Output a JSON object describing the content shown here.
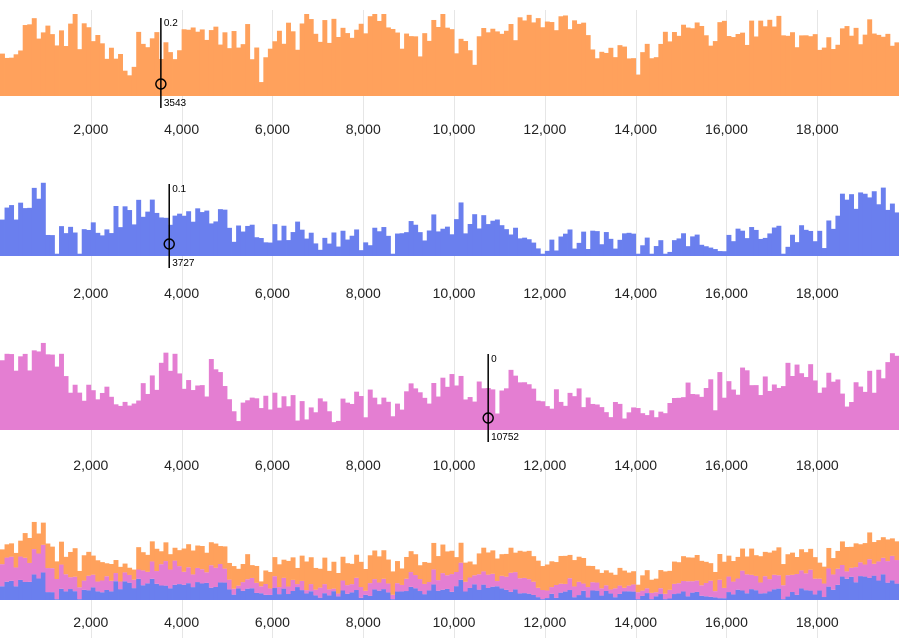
{
  "chart_data": [
    {
      "type": "bar",
      "title": "",
      "series_name": "orange",
      "color": "#FFA15C",
      "x_domain": [
        0,
        19800
      ],
      "bin_width": 100,
      "xticks": [
        "2,000",
        "4,000",
        "6,000",
        "8,000",
        "10,000",
        "12,000",
        "14,000",
        "16,000",
        "18,000"
      ],
      "cursor": {
        "x": 3543,
        "value_label": "0.2",
        "x_label": "3543"
      },
      "segments": [
        [
          0,
          0.6
        ],
        [
          500,
          0.82
        ],
        [
          1000,
          0.72
        ],
        [
          1500,
          0.86
        ],
        [
          2000,
          0.74
        ],
        [
          2500,
          0.36
        ],
        [
          3000,
          0.65
        ],
        [
          3500,
          0.58
        ],
        [
          4000,
          0.84
        ],
        [
          4500,
          0.76
        ],
        [
          5000,
          0.72
        ],
        [
          5500,
          0.56
        ],
        [
          6000,
          0.74
        ],
        [
          6500,
          0.88
        ],
        [
          7000,
          0.8
        ],
        [
          7500,
          0.78
        ],
        [
          8000,
          0.9
        ],
        [
          8500,
          0.68
        ],
        [
          9000,
          0.63
        ],
        [
          9500,
          0.88
        ],
        [
          10000,
          0.62
        ],
        [
          10500,
          0.86
        ],
        [
          11000,
          0.82
        ],
        [
          11500,
          0.8
        ],
        [
          12000,
          0.88
        ],
        [
          12500,
          0.78
        ],
        [
          13000,
          0.62
        ],
        [
          13500,
          0.58
        ],
        [
          14000,
          0.55
        ],
        [
          14500,
          0.7
        ],
        [
          15000,
          0.8
        ],
        [
          15500,
          0.76
        ],
        [
          16000,
          0.73
        ],
        [
          16500,
          0.8
        ],
        [
          17000,
          0.82
        ],
        [
          17500,
          0.72
        ],
        [
          18000,
          0.56
        ],
        [
          18500,
          0.73
        ],
        [
          19000,
          0.84
        ],
        [
          19500,
          0.66
        ]
      ]
    },
    {
      "type": "bar",
      "title": "",
      "series_name": "blue",
      "color": "#6A7FEE",
      "x_domain": [
        0,
        19800
      ],
      "bin_width": 100,
      "xticks": [
        "2,000",
        "4,000",
        "6,000",
        "8,000",
        "10,000",
        "12,000",
        "14,000",
        "16,000",
        "18,000"
      ],
      "cursor": {
        "x": 3727,
        "value_label": "0.1",
        "x_label": "3727"
      },
      "segments": [
        [
          0,
          0.56
        ],
        [
          500,
          0.78
        ],
        [
          1000,
          0.27
        ],
        [
          1500,
          0.24
        ],
        [
          2000,
          0.32
        ],
        [
          2500,
          0.52
        ],
        [
          3000,
          0.62
        ],
        [
          3500,
          0.5
        ],
        [
          4000,
          0.52
        ],
        [
          4500,
          0.56
        ],
        [
          5000,
          0.34
        ],
        [
          5500,
          0.28
        ],
        [
          6000,
          0.36
        ],
        [
          6500,
          0.3
        ],
        [
          7000,
          0.18
        ],
        [
          7500,
          0.22
        ],
        [
          8000,
          0.24
        ],
        [
          8500,
          0.27
        ],
        [
          9000,
          0.36
        ],
        [
          9500,
          0.44
        ],
        [
          10000,
          0.58
        ],
        [
          10500,
          0.46
        ],
        [
          11000,
          0.32
        ],
        [
          11500,
          0.2
        ],
        [
          12000,
          0.16
        ],
        [
          12500,
          0.2
        ],
        [
          13000,
          0.2
        ],
        [
          13500,
          0.16
        ],
        [
          14000,
          0.1
        ],
        [
          14500,
          0.13
        ],
        [
          15000,
          0.16
        ],
        [
          15500,
          0.2
        ],
        [
          16000,
          0.2
        ],
        [
          16500,
          0.28
        ],
        [
          17000,
          0.27
        ],
        [
          17500,
          0.32
        ],
        [
          18000,
          0.4
        ],
        [
          18500,
          0.72
        ],
        [
          19000,
          0.84
        ],
        [
          19500,
          0.64
        ]
      ]
    },
    {
      "type": "bar",
      "title": "",
      "series_name": "pink",
      "color": "#E47ED2",
      "x_domain": [
        0,
        19800
      ],
      "bin_width": 100,
      "xticks": [
        "2,000",
        "4,000",
        "6,000",
        "8,000",
        "10,000",
        "12,000",
        "14,000",
        "16,000",
        "18,000"
      ],
      "cursor": {
        "x": 10752,
        "value_label": "0",
        "x_label": "10752"
      },
      "segments": [
        [
          0,
          0.78
        ],
        [
          500,
          0.82
        ],
        [
          1000,
          0.72
        ],
        [
          1500,
          0.48
        ],
        [
          2000,
          0.36
        ],
        [
          2500,
          0.36
        ],
        [
          3000,
          0.48
        ],
        [
          3500,
          0.74
        ],
        [
          4000,
          0.6
        ],
        [
          4500,
          0.52
        ],
        [
          5000,
          0.36
        ],
        [
          5500,
          0.3
        ],
        [
          6000,
          0.26
        ],
        [
          6500,
          0.24
        ],
        [
          7000,
          0.24
        ],
        [
          7500,
          0.32
        ],
        [
          8000,
          0.3
        ],
        [
          8500,
          0.27
        ],
        [
          9000,
          0.44
        ],
        [
          9500,
          0.52
        ],
        [
          10000,
          0.46
        ],
        [
          10500,
          0.5
        ],
        [
          11000,
          0.54
        ],
        [
          11500,
          0.4
        ],
        [
          12000,
          0.36
        ],
        [
          12500,
          0.32
        ],
        [
          13000,
          0.3
        ],
        [
          13500,
          0.26
        ],
        [
          14000,
          0.24
        ],
        [
          14500,
          0.28
        ],
        [
          15000,
          0.38
        ],
        [
          15500,
          0.5
        ],
        [
          16000,
          0.52
        ],
        [
          16500,
          0.56
        ],
        [
          17000,
          0.6
        ],
        [
          17500,
          0.62
        ],
        [
          18000,
          0.5
        ],
        [
          18500,
          0.46
        ],
        [
          19000,
          0.56
        ],
        [
          19500,
          0.88
        ]
      ]
    },
    {
      "type": "bar",
      "title": "",
      "series_name": "stacked",
      "stacked": true,
      "x_domain": [
        0,
        19800
      ],
      "bin_width": 100,
      "xticks": [
        "2,000",
        "4,000",
        "6,000",
        "8,000",
        "10,000",
        "12,000",
        "14,000",
        "16,000",
        "18,000"
      ],
      "stack_order": [
        "blue",
        "pink",
        "orange"
      ],
      "ylim": [
        0,
        0.85
      ]
    }
  ]
}
